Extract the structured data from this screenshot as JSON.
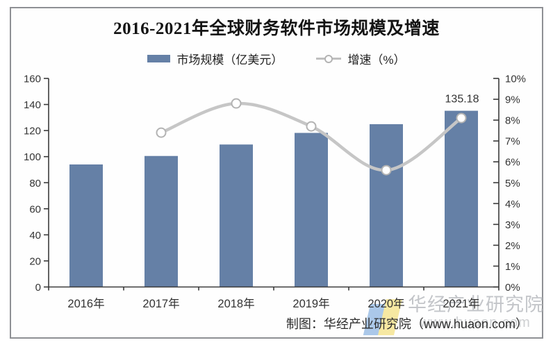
{
  "chart_data": {
    "type": "bar+line",
    "title": "2016-2021年全球财务软件市场规模及增速",
    "categories": [
      "2016年",
      "2017年",
      "2018年",
      "2019年",
      "2020年",
      "2021年"
    ],
    "series": [
      {
        "name": "市场规模（亿美元）",
        "type": "bar",
        "axis": "left",
        "values": [
          94,
          100.5,
          109.3,
          118.2,
          124.9,
          135.18
        ],
        "color": "#6580A6"
      },
      {
        "name": "增速（%）",
        "type": "line",
        "axis": "right",
        "start_index": 1,
        "values": [
          7.4,
          8.8,
          7.7,
          5.6,
          8.1
        ],
        "color": "#C6C6C6",
        "marker": "open-circle",
        "marker_fill": "#FFFFFF",
        "marker_stroke": "#B3B3B3"
      }
    ],
    "left_axis": {
      "min": 0,
      "max": 160,
      "step": 20,
      "tick_labels": [
        "0",
        "20",
        "40",
        "60",
        "80",
        "100",
        "120",
        "140",
        "160"
      ]
    },
    "right_axis": {
      "min": 0,
      "max": 10,
      "step": 1,
      "tick_labels": [
        "0%",
        "1%",
        "2%",
        "3%",
        "4%",
        "5%",
        "6%",
        "7%",
        "8%",
        "9%",
        "10%"
      ]
    },
    "data_labels": [
      {
        "series": 0,
        "index": 5,
        "text": "135.18"
      }
    ],
    "legend_position": "top",
    "grid": false,
    "axis_color": "#3a3a3a",
    "tick_text_color": "#333333"
  },
  "watermark": {
    "brand": "华经产业研究院",
    "url": "www.huaon.com"
  },
  "footer": {
    "credit": "制图：华经产业研究院（www.huaon.com）"
  }
}
